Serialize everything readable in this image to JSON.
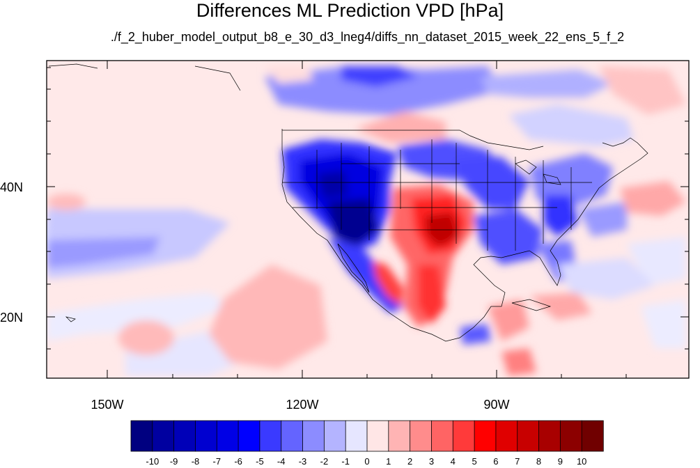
{
  "title": "Differences ML Prediction VPD [hPa]",
  "subtitle": "./f_2_huber_model_output_b8_e_30_d3_lneg4/diffs_nn_dataset_2015_week_22_ens_5_f_2",
  "lat_labels": [
    "40N",
    "20N"
  ],
  "lon_labels": [
    "150W",
    "120W",
    "90W"
  ],
  "colorbar": {
    "ticks": [
      "-10",
      "-9",
      "-8",
      "-7",
      "-6",
      "-5",
      "-4",
      "-3",
      "-2",
      "-1",
      "0",
      "1",
      "2",
      "3",
      "4",
      "5",
      "6",
      "7",
      "8",
      "9",
      "10"
    ],
    "colors": [
      "#000080",
      "#0000a0",
      "#0000b8",
      "#0000d0",
      "#0000e6",
      "#0000ff",
      "#3a3aff",
      "#6464ff",
      "#8c8cff",
      "#b4b4ff",
      "#e6e6ff",
      "#ffe6e6",
      "#ffb4b4",
      "#ff8c8c",
      "#ff6464",
      "#ff3a3a",
      "#ff0000",
      "#e00000",
      "#c80000",
      "#a80000",
      "#8c0000",
      "#700000"
    ]
  }
}
